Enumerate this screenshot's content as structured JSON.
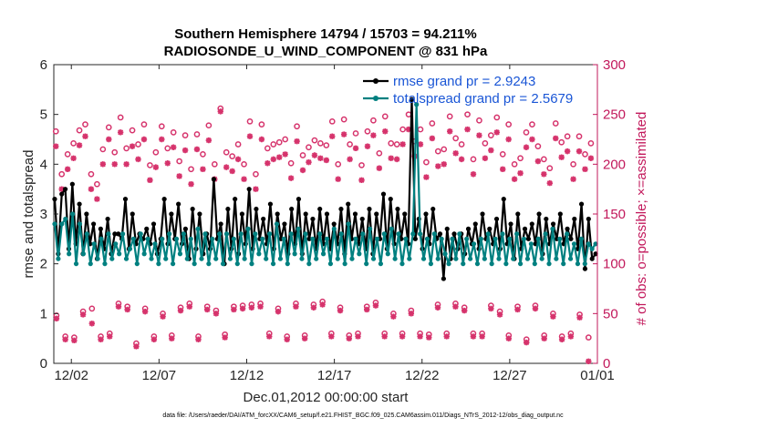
{
  "chart_data": {
    "type": "line",
    "title_line1": "Southern Hemisphere 14794 / 15703 = 94.211%",
    "title_line2": "RADIOSONDE_U_WIND_COMPONENT @ 831 hPa",
    "xlabel": "Dec.01,2012 00:00:00 start",
    "ylabel": "rmse and totalspread",
    "ylabel_right": "# of obs: o=possible; ×=assimilated",
    "xlim": [
      0,
      31
    ],
    "ylim": [
      0,
      6
    ],
    "ylim_right": [
      0,
      300
    ],
    "x_ticks": [
      {
        "value": 1,
        "label": "12/02"
      },
      {
        "value": 6,
        "label": "12/07"
      },
      {
        "value": 11,
        "label": "12/12"
      },
      {
        "value": 16,
        "label": "12/17"
      },
      {
        "value": 21,
        "label": "12/22"
      },
      {
        "value": 26,
        "label": "12/27"
      },
      {
        "value": 31,
        "label": "01/01"
      }
    ],
    "y_ticks": [
      "0",
      "1",
      "2",
      "3",
      "4",
      "5",
      "6"
    ],
    "y_ticks_right": [
      "0",
      "50",
      "100",
      "150",
      "200",
      "250",
      "300"
    ],
    "legend": [
      {
        "name": "rmse grand pr = 2.9243",
        "color": "#000000"
      },
      {
        "name": "totalspread grand pr = 2.5679",
        "color": "#008080"
      }
    ],
    "series": [
      {
        "name": "rmse",
        "color": "#000000",
        "axis": "left",
        "values": [
          3.3,
          2.2,
          3.4,
          3.5,
          2.3,
          3.6,
          2.4,
          3.2,
          2.2,
          3.0,
          2.4,
          2.8,
          2.1,
          2.7,
          2.3,
          2.9,
          2.2,
          2.6,
          2.6,
          2.5,
          3.3,
          2.3,
          3.0,
          2.4,
          2.6,
          2.5,
          2.7,
          2.4,
          2.8,
          2.2,
          2.5,
          3.3,
          2.4,
          3.0,
          2.5,
          3.2,
          2.4,
          2.7,
          2.1,
          3.1,
          2.3,
          3.0,
          2.2,
          2.6,
          2.3,
          3.7,
          2.5,
          2.8,
          2.0,
          3.1,
          2.3,
          3.3,
          2.2,
          3.0,
          2.4,
          3.5,
          2.3,
          3.1,
          2.5,
          2.9,
          2.4,
          3.2,
          2.3,
          3.0,
          2.5,
          2.8,
          2.2,
          3.1,
          2.4,
          3.3,
          2.2,
          3.0,
          2.5,
          2.9,
          2.3,
          3.1,
          2.4,
          3.0,
          2.3,
          2.8,
          2.4,
          3.1,
          2.2,
          3.2,
          2.5,
          3.0,
          2.4,
          2.9,
          2.3,
          3.1,
          2.2,
          3.0,
          2.5,
          3.4,
          2.3,
          3.3,
          2.4,
          3.1,
          2.5,
          3.0,
          2.4,
          5.3,
          2.5,
          2.9,
          2.3,
          3.0,
          2.4,
          3.1,
          2.5,
          2.6,
          1.7,
          2.7,
          2.1,
          2.6,
          2.3,
          2.6,
          2.2,
          2.7,
          2.4,
          2.8,
          2.3,
          3.0,
          2.5,
          2.7,
          2.4,
          2.9,
          2.3,
          3.3,
          2.4,
          2.8,
          2.1,
          3.0,
          2.3,
          2.7,
          2.5,
          2.8,
          2.4,
          3.0,
          2.2,
          2.9,
          2.4,
          2.8,
          2.5,
          3.0,
          2.4,
          2.7,
          2.5,
          2.9,
          2.3,
          3.2,
          1.9,
          2.9,
          2.1,
          2.2
        ]
      },
      {
        "name": "totalspread",
        "color": "#008080",
        "axis": "left",
        "values": [
          2.8,
          2.1,
          2.8,
          2.9,
          2.2,
          3.0,
          2.0,
          2.8,
          2.2,
          2.6,
          2.0,
          2.4,
          2.1,
          2.5,
          2.0,
          2.6,
          2.1,
          2.4,
          2.2,
          2.6,
          2.1,
          2.3,
          2.5,
          2.0,
          2.6,
          2.2,
          2.5,
          2.1,
          2.4,
          2.0,
          2.5,
          2.1,
          2.6,
          2.0,
          2.5,
          2.2,
          2.6,
          2.1,
          2.5,
          2.0,
          2.7,
          2.1,
          2.6,
          2.0,
          2.5,
          2.1,
          2.6,
          2.0,
          2.6,
          2.1,
          2.5,
          2.0,
          2.6,
          2.1,
          2.7,
          2.0,
          2.6,
          2.2,
          2.5,
          2.1,
          2.6,
          2.0,
          2.8,
          2.1,
          2.5,
          2.0,
          2.6,
          2.2,
          2.7,
          2.1,
          2.6,
          2.0,
          2.5,
          2.1,
          2.6,
          2.2,
          2.5,
          2.0,
          2.7,
          2.1,
          2.6,
          2.0,
          2.8,
          2.1,
          2.5,
          2.2,
          2.6,
          2.0,
          2.7,
          2.1,
          2.5,
          2.0,
          2.6,
          2.2,
          2.7,
          2.1,
          2.6,
          2.0,
          2.5,
          2.1,
          2.6,
          5.2,
          2.6,
          2.1,
          2.5,
          2.0,
          2.6,
          2.1,
          2.5,
          2.2,
          2.0,
          2.5,
          2.1,
          2.6,
          2.0,
          2.5,
          2.1,
          2.4,
          2.0,
          2.5,
          2.1,
          2.6,
          2.0,
          2.5,
          2.1,
          2.6,
          2.0,
          2.5,
          2.1,
          2.6,
          2.0,
          2.5,
          2.1,
          2.4,
          2.0,
          2.5,
          2.1,
          2.6,
          2.0,
          2.7,
          2.1,
          2.5,
          2.0,
          2.6,
          2.1,
          2.4,
          2.0,
          2.5,
          2.0,
          2.4,
          2.3,
          2.4
        ]
      },
      {
        "name": "obs possible (high)",
        "color": "#d6336c",
        "axis": "right",
        "marker": "o",
        "values": [
          233,
          190,
          210,
          221,
          234,
          240,
          190,
          180,
          215,
          237,
          212,
          247,
          216,
          234,
          220,
          240,
          199,
          212,
          238,
          216,
          232,
          203,
          229,
          195,
          230,
          210,
          239,
          200,
          256,
          212,
          208,
          220,
          200,
          243,
          190,
          240,
          216,
          220,
          222,
          225,
          201,
          238,
          209,
          217,
          224,
          221,
          219,
          243,
          200,
          245,
          220,
          231,
          199,
          233,
          244,
          211,
          248,
          221,
          220,
          235,
          250,
          223,
          235,
          202,
          241,
          213,
          215,
          248,
          226,
          220,
          250,
          205,
          244,
          221,
          229,
          247,
          210,
          240,
          200,
          206,
          232,
          240,
          218,
          205,
          196,
          241,
          222,
          228,
          200,
          228,
          210,
          221
        ]
      },
      {
        "name": "obs assimilated (high)",
        "color": "#d6336c",
        "axis": "right",
        "marker": "*",
        "values": [
          218,
          175,
          195,
          206,
          219,
          228,
          175,
          165,
          200,
          225,
          200,
          232,
          200,
          218,
          205,
          225,
          184,
          197,
          225,
          201,
          217,
          188,
          214,
          180,
          215,
          195,
          224,
          185,
          253,
          197,
          193,
          205,
          185,
          228,
          175,
          225,
          201,
          205,
          207,
          210,
          186,
          223,
          194,
          202,
          209,
          206,
          204,
          228,
          185,
          230,
          205,
          216,
          184,
          218,
          229,
          196,
          233,
          206,
          205,
          220,
          235,
          208,
          220,
          187,
          226,
          198,
          200,
          233,
          211,
          205,
          235,
          190,
          229,
          206,
          214,
          232,
          195,
          225,
          185,
          191,
          217,
          225,
          203,
          190,
          181,
          226,
          207,
          213,
          185,
          213,
          195,
          206
        ]
      },
      {
        "name": "obs possible (low)",
        "color": "#d6336c",
        "axis": "right",
        "marker": "o",
        "values": [
          48,
          27,
          26,
          52,
          55,
          27,
          30,
          60,
          57,
          20,
          55,
          27,
          50,
          28,
          56,
          60,
          27,
          57,
          53,
          29,
          57,
          58,
          59,
          60,
          30,
          55,
          27,
          60,
          28,
          59,
          62,
          30,
          56,
          28,
          30,
          57,
          61,
          30,
          50,
          30,
          53,
          30,
          29,
          59,
          30,
          60,
          56,
          30,
          30,
          58,
          52,
          28,
          57,
          24,
          58,
          28,
          50,
          27,
          30,
          49,
          26
        ]
      },
      {
        "name": "obs assimilated (low)",
        "color": "#d6336c",
        "axis": "right",
        "marker": "*",
        "values": [
          45,
          24,
          23,
          49,
          40,
          24,
          27,
          57,
          54,
          17,
          52,
          24,
          47,
          25,
          53,
          57,
          24,
          54,
          50,
          26,
          54,
          55,
          56,
          57,
          27,
          52,
          24,
          57,
          25,
          56,
          59,
          27,
          53,
          25,
          27,
          54,
          58,
          27,
          47,
          27,
          50,
          27,
          26,
          56,
          27,
          57,
          53,
          27,
          27,
          55,
          49,
          25,
          54,
          21,
          55,
          25,
          47,
          24,
          27,
          46,
          2
        ]
      }
    ]
  },
  "footnote": "data file: /Users/raeder/DAI/ATM_forcXX/CAM6_setup/f.e21.FHIST_BGC.f09_025.CAM6assim.011/Diags_NTrS_2012-12/obs_diag_output.nc"
}
